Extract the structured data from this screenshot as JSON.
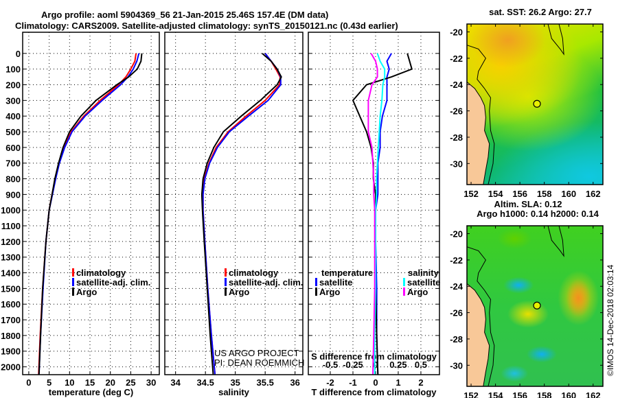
{
  "title": {
    "line1": "Argo profile: aoml 5904369_56 21-Jan-2015 25.46S 157.4E (DM data)",
    "line2": "Climatology: CARS2009. Satellite-adjusted climatology: synTS_20150121.nc (0.43d earlier)"
  },
  "credits": {
    "project": "US ARGO PROJECT",
    "pi": "PI: DEAN ROEMMICH",
    "imos": "©IMOS 14-Dec-2018 02:03:14"
  },
  "colors": {
    "climatology": "#ff0000",
    "satellite": "#0000ff",
    "argo": "#000000",
    "sal_satellite": "#00ffff",
    "sal_argo": "#ff00ff"
  },
  "legend": {
    "climatology": "climatology",
    "satellite_adj": "satellite-adj. clim.",
    "argo": "Argo",
    "temperature": "temperature",
    "salinity": "salinity",
    "satellite": "satellite"
  },
  "chart_data": [
    {
      "type": "line",
      "id": "temperature",
      "xlabel": "temperature (deg C)",
      "xlim": [
        -1.5,
        32
      ],
      "xticks": [
        "0",
        "5",
        "10",
        "15",
        "20",
        "25",
        "30"
      ],
      "ylim": [
        2050,
        -135
      ],
      "yticks": [
        "0",
        "100",
        "200",
        "300",
        "400",
        "500",
        "600",
        "700",
        "800",
        "900",
        "1000",
        "1100",
        "1200",
        "1300",
        "1400",
        "1500",
        "1600",
        "1700",
        "1800",
        "1900",
        "2000"
      ],
      "depth": [
        0,
        50,
        100,
        150,
        200,
        300,
        400,
        500,
        600,
        700,
        800,
        900,
        1000,
        1200,
        1500,
        1800,
        2050
      ],
      "series": [
        {
          "name": "climatology",
          "color": "#ff0000",
          "values": [
            26.3,
            26.0,
            25.0,
            23.8,
            22.0,
            17.5,
            13.5,
            10.4,
            8.6,
            7.4,
            6.5,
            5.7,
            5.0,
            4.2,
            3.4,
            2.8,
            2.4
          ]
        },
        {
          "name": "satellite-adj. clim.",
          "color": "#0000ff",
          "values": [
            27.0,
            26.5,
            25.6,
            24.3,
            22.5,
            18.0,
            13.8,
            10.6,
            8.8,
            7.5,
            6.6,
            5.8,
            5.0,
            4.2,
            3.5,
            2.9,
            2.5
          ]
        },
        {
          "name": "Argo",
          "color": "#000000",
          "values": [
            27.7,
            27.5,
            26.6,
            24.5,
            21.6,
            16.5,
            12.8,
            10.0,
            8.4,
            7.3,
            6.4,
            5.7,
            5.0,
            4.2,
            3.4,
            2.9,
            2.5
          ]
        }
      ]
    },
    {
      "type": "line",
      "id": "salinity",
      "xlabel": "salinity",
      "xlim": [
        33.82,
        36.13
      ],
      "xticks": [
        "34",
        "34.5",
        "35",
        "35.5",
        "36"
      ],
      "ylim": [
        2050,
        -135
      ],
      "depth": [
        0,
        50,
        100,
        150,
        200,
        300,
        400,
        500,
        600,
        700,
        800,
        900,
        1000,
        1200,
        1500,
        1800,
        2050
      ],
      "series": [
        {
          "name": "climatology",
          "color": "#ff0000",
          "values": [
            35.5,
            35.6,
            35.68,
            35.75,
            35.74,
            35.5,
            35.18,
            34.88,
            34.68,
            34.56,
            34.48,
            34.46,
            34.46,
            34.49,
            34.54,
            34.6,
            34.66
          ]
        },
        {
          "name": "satellite-adj. clim.",
          "color": "#0000ff",
          "values": [
            35.5,
            35.6,
            35.7,
            35.76,
            35.76,
            35.55,
            35.22,
            34.9,
            34.7,
            34.57,
            34.49,
            34.46,
            34.46,
            34.49,
            34.54,
            34.6,
            34.66
          ]
        },
        {
          "name": "Argo",
          "color": "#000000",
          "values": [
            35.45,
            35.6,
            35.7,
            35.77,
            35.7,
            35.42,
            35.1,
            34.8,
            34.64,
            34.53,
            34.46,
            34.44,
            34.45,
            34.48,
            34.53,
            34.58,
            34.63
          ]
        }
      ]
    },
    {
      "type": "line",
      "id": "difference",
      "xlabel": "T difference from climatology",
      "xlabel2": "S difference from climatology",
      "xlim": [
        -2.97,
        2.82
      ],
      "xticks": [
        "-2",
        "-1",
        "0",
        "1",
        "2"
      ],
      "s_xlim": [
        -0.7425,
        0.705
      ],
      "s_xticks": [
        "-0.5",
        "-0.25",
        "0",
        "0.25",
        "0.5"
      ],
      "ylim": [
        2050,
        -135
      ],
      "depth": [
        0,
        50,
        100,
        150,
        200,
        300,
        400,
        500,
        600,
        700,
        800,
        900,
        1000,
        1200,
        1500,
        1800,
        2050
      ],
      "series": [
        {
          "name": "temperature satellite",
          "axis": "T",
          "color": "#0000ff",
          "values": [
            0.7,
            0.5,
            0.6,
            0.5,
            0.5,
            0.5,
            0.3,
            0.2,
            0.2,
            0.1,
            0.1,
            0.1,
            0,
            0,
            0.05,
            0.05,
            0.1
          ]
        },
        {
          "name": "temperature Argo",
          "axis": "T",
          "color": "#000000",
          "values": [
            1.4,
            1.5,
            1.6,
            0.7,
            -0.4,
            -1.0,
            -0.7,
            -0.4,
            -0.2,
            -0.1,
            -0.1,
            0,
            0,
            0,
            0,
            0.05,
            0.1
          ]
        },
        {
          "name": "salinity satellite",
          "axis": "S",
          "color": "#00ffff",
          "values": [
            0.02,
            0.05,
            0.1,
            0.1,
            0.08,
            0.07,
            0.05,
            0.04,
            0.03,
            0.02,
            0.01,
            0.01,
            0,
            0,
            0,
            -0.01,
            -0.01
          ]
        },
        {
          "name": "salinity Argo",
          "axis": "S",
          "color": "#ff00ff",
          "values": [
            -0.05,
            0,
            0.02,
            0.02,
            -0.04,
            -0.08,
            -0.08,
            -0.08,
            -0.04,
            -0.03,
            -0.02,
            -0.02,
            -0.01,
            -0.01,
            -0.01,
            -0.02,
            -0.03
          ]
        }
      ]
    },
    {
      "type": "heatmap",
      "id": "sst_map",
      "title": "sat. SST: 26.2 Argo: 27.7",
      "xlim": [
        151.66,
        162.8
      ],
      "ylim": [
        -31.6,
        -19.4
      ],
      "xticks": [
        "152",
        "154",
        "156",
        "158",
        "160",
        "162"
      ],
      "yticks": [
        "-20",
        "-22",
        "-24",
        "-26",
        "-28",
        "-30"
      ],
      "argo_position": {
        "lon": 157.4,
        "lat": -25.46
      }
    },
    {
      "type": "heatmap",
      "id": "sla_map",
      "title": "Altim. SLA: 0.12",
      "subtitle": "Argo h1000: 0.14 h2000: 0.14",
      "xlim": [
        151.66,
        162.8
      ],
      "ylim": [
        -31.6,
        -19.4
      ],
      "xticks": [
        "152",
        "154",
        "156",
        "158",
        "160",
        "162"
      ],
      "yticks": [
        "-20",
        "-22",
        "-24",
        "-26",
        "-28",
        "-30"
      ],
      "argo_position": {
        "lon": 157.4,
        "lat": -25.46
      }
    }
  ]
}
